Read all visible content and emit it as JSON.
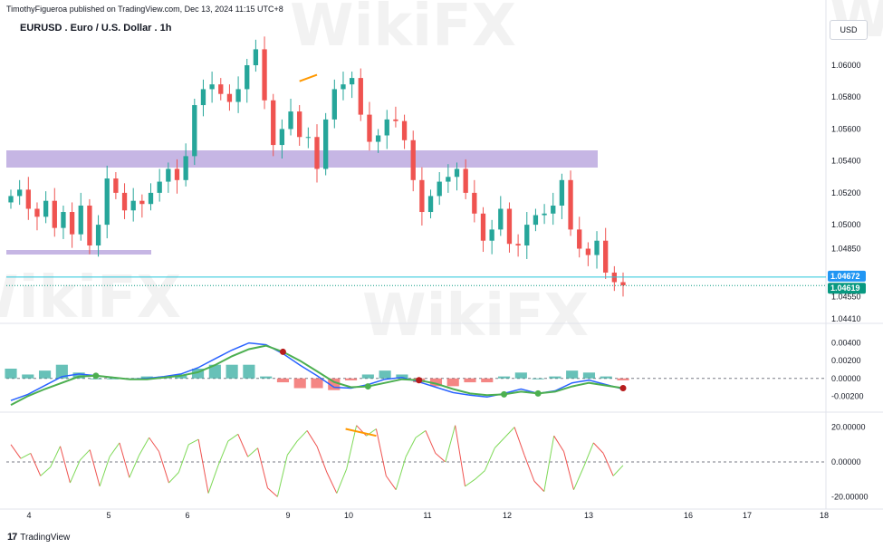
{
  "header": {
    "published": "TimothyFigueroa published on TradingView.com, Dec 13, 2024 11:15 UTC+8",
    "symbol_title": "EURUSD . Euro / U.S. Dollar . 1h",
    "currency": "USD"
  },
  "footer": {
    "brand": "TradingView",
    "logo_glyph": "17"
  },
  "watermark": "WikiFX",
  "colors": {
    "up": "#26a69a",
    "down": "#ef5350",
    "zone": "#b39ddb",
    "last_price": "#089981",
    "level_line": "#26c6da",
    "macd_line": "#2962ff",
    "signal_line": "#4caf50",
    "signal_down": "#b71c1c",
    "divergence": "#ff9800",
    "cross_green": "#4caf50",
    "cross_red": "#b71c1c"
  },
  "chart_data": [
    {
      "type": "candlestick",
      "panel": "price",
      "title": "EURUSD . Euro / U.S. Dollar . 1h",
      "ylim": [
        1.0441,
        1.0625
      ],
      "y_ticks": [
        "1.06000",
        "1.05800",
        "1.05600",
        "1.05400",
        "1.05200",
        "1.05000",
        "1.04850",
        "1.04550",
        "1.04410"
      ],
      "x_ticks": [
        "4",
        "5",
        "6",
        "9",
        "10",
        "11",
        "12",
        "13",
        "16",
        "17",
        "18"
      ],
      "price_tags": [
        {
          "label": "1.04672",
          "value": 1.04672,
          "color": "#2196f3"
        },
        {
          "label": "1.04619",
          "value": 1.04619,
          "color": "#089981"
        }
      ],
      "zones": [
        {
          "name": "resistance-zone",
          "y_low": 1.0532,
          "y_high": 1.0538
        },
        {
          "name": "support-zone",
          "y_low": 1.047,
          "y_high": 1.0472
        }
      ],
      "close_path": [
        1.0518,
        1.0522,
        1.051,
        1.0505,
        1.0515,
        1.0498,
        1.0508,
        1.0494,
        1.0512,
        1.0487,
        1.05,
        1.0529,
        1.052,
        1.0509,
        1.0515,
        1.0513,
        1.052,
        1.0527,
        1.0535,
        1.0528,
        1.0543,
        1.0575,
        1.0585,
        1.0588,
        1.0582,
        1.0577,
        1.0585,
        1.06,
        1.061,
        1.0578,
        1.055,
        1.056,
        1.0571,
        1.0555,
        1.0555,
        1.0535,
        1.0566,
        1.0585,
        1.0588,
        1.0592,
        1.0569,
        1.0552,
        1.0556,
        1.0566,
        1.0565,
        1.0553,
        1.0528,
        1.0508,
        1.0518,
        1.0527,
        1.053,
        1.0535,
        1.052,
        1.0507,
        1.049,
        1.0497,
        1.051,
        1.0488,
        1.0487,
        1.05,
        1.0506,
        1.0507,
        1.0512,
        1.0528,
        1.0497,
        1.0485,
        1.0481,
        1.049,
        1.047,
        1.0464,
        1.0462
      ],
      "divergence_line": {
        "from": [
          33,
          1.059
        ],
        "to": [
          35,
          1.0594
        ]
      }
    },
    {
      "type": "macd",
      "panel": "macd",
      "ylim": [
        -0.0035,
        0.0057
      ],
      "y_ticks": [
        "0.00400",
        "0.00200",
        "0.00000",
        "-0.00200"
      ],
      "macd": [
        -0.0025,
        -0.0018,
        -0.0008,
        0.0002,
        0.0005,
        0.0003,
        0.0001,
        -0.0001,
        -0.0,
        0.0002,
        0.0005,
        0.0012,
        0.0022,
        0.0032,
        0.004,
        0.0038,
        0.0028,
        0.0015,
        0.0003,
        -0.001,
        -0.0011,
        -0.0007,
        -0.0001,
        0.0001,
        -0.0004,
        -0.001,
        -0.0016,
        -0.0019,
        -0.0021,
        -0.0017,
        -0.0012,
        -0.0017,
        -0.0014,
        -0.0005,
        -0.0002,
        -0.0007,
        -0.0012
      ],
      "signal": [
        -0.003,
        -0.002,
        -0.0012,
        -0.0005,
        0.0002,
        0.0003,
        0.0001,
        -0.0001,
        -0.0001,
        0.0001,
        0.0003,
        0.0007,
        0.0015,
        0.0025,
        0.0033,
        0.0037,
        0.003,
        0.002,
        0.0008,
        -0.0004,
        -0.001,
        -0.0009,
        -0.0005,
        -0.0001,
        -0.0002,
        -0.0006,
        -0.0012,
        -0.0017,
        -0.0019,
        -0.0018,
        -0.0015,
        -0.0017,
        -0.0015,
        -0.0009,
        -0.0005,
        -0.0008,
        -0.0011
      ]
    },
    {
      "type": "line",
      "panel": "oscillator",
      "ylim": [
        -25,
        25
      ],
      "y_ticks": [
        "20.00000",
        "0.00000",
        "-20.00000"
      ],
      "values": [
        10,
        2,
        5,
        -8,
        -3,
        9,
        -12,
        1,
        7,
        -14,
        3,
        11,
        -9,
        4,
        14,
        6,
        -12,
        -6,
        10,
        13,
        -18,
        -2,
        12,
        16,
        3,
        8,
        -15,
        -20,
        4,
        12,
        18,
        9,
        -6,
        -18,
        -4,
        21,
        15,
        19,
        -8,
        -16,
        3,
        14,
        18,
        5,
        0,
        21,
        -14,
        -10,
        -5,
        8,
        14,
        20,
        4,
        -11,
        -17,
        15,
        6,
        -16,
        -3,
        11,
        5,
        -8,
        -2
      ]
    }
  ]
}
